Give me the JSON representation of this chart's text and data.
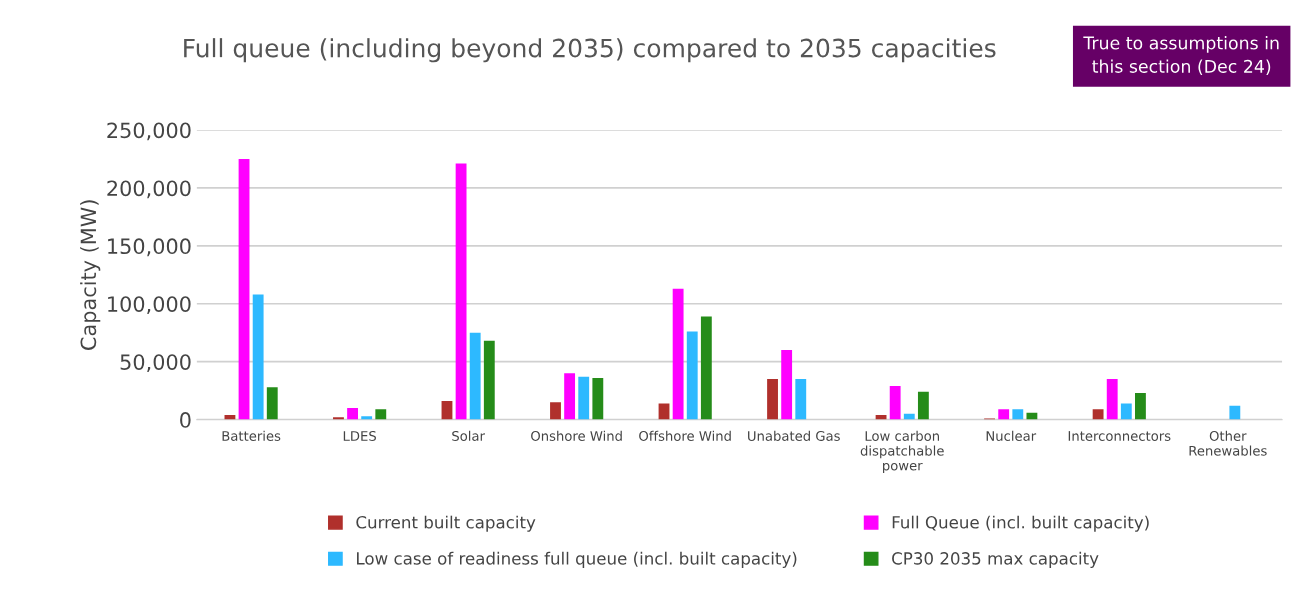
{
  "chart_data": {
    "type": "bar",
    "title": "Full queue (including beyond 2035) compared to 2035 capacities",
    "ylabel": "Capacity (MW)",
    "annotations": [
      "True to assumptions in this section (Dec 24)"
    ],
    "categories": [
      "Batteries",
      "LDES",
      "Solar",
      "Onshore Wind",
      "Offshore Wind",
      "Unabated Gas",
      "Low carbon dispatchable power",
      "Nuclear",
      "Interconnectors",
      "Other Renewables"
    ],
    "series": [
      {
        "name": "Current built capacity",
        "color": "#b0302c",
        "values": [
          4000,
          2000,
          16000,
          15000,
          14000,
          35000,
          4000,
          1000,
          9000,
          0
        ]
      },
      {
        "name": "Full Queue (incl. built capacity)",
        "color": "#ff00ff",
        "values": [
          225000,
          10000,
          221000,
          40000,
          113000,
          60000,
          29000,
          9000,
          35000,
          null
        ]
      },
      {
        "name": "Low case of readiness full queue (incl. built capacity)",
        "color": "#2db9ff",
        "values": [
          108000,
          3000,
          75000,
          37000,
          76000,
          35000,
          5000,
          9000,
          14000,
          12000
        ]
      },
      {
        "name": "CP30 2035 max capacity",
        "color": "#258c19",
        "values": [
          28000,
          9000,
          68000,
          36000,
          89000,
          0,
          24000,
          6000,
          23000,
          0
        ]
      }
    ],
    "ylim": [
      0,
      250000
    ],
    "yticks": [
      {
        "value": 0,
        "label": "0"
      },
      {
        "value": 50000,
        "label": "50,000"
      },
      {
        "value": 100000,
        "label": "100,000"
      },
      {
        "value": 150000,
        "label": "150,000"
      },
      {
        "value": 200000,
        "label": "200,000"
      },
      {
        "value": 250000,
        "label": "250,000"
      }
    ],
    "grid": "y",
    "legend": "bottom"
  }
}
